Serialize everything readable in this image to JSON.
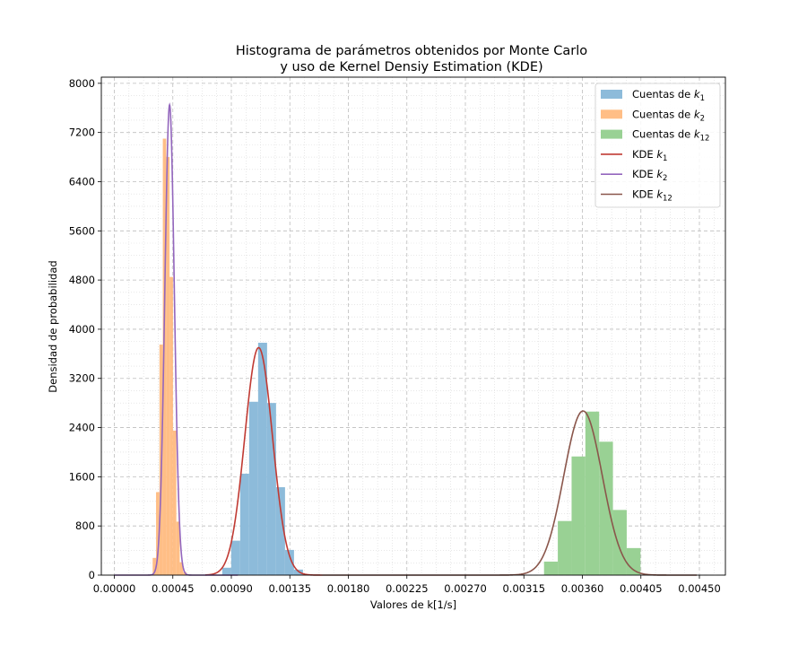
{
  "chart_data": {
    "type": "histogram-kde",
    "title_line1": "Histograma de parámetros obtenidos por Monte Carlo",
    "title_line2": "y uso de Kernel Densiy Estimation (KDE)",
    "xlabel": "Valores de k[1/s]",
    "ylabel": "Densidad de probabilidad",
    "xlim": [
      -0.0001,
      0.0047
    ],
    "ylim": [
      0,
      8100
    ],
    "xticks": [
      0.0,
      0.00045,
      0.0009,
      0.00135,
      0.0018,
      0.00225,
      0.0027,
      0.00315,
      0.0036,
      0.00405,
      0.0045
    ],
    "xtick_labels": [
      "0.00000",
      "0.00045",
      "0.00090",
      "0.00135",
      "0.00180",
      "0.00225",
      "0.00270",
      "0.00315",
      "0.00360",
      "0.00405",
      "0.00450"
    ],
    "yticks": [
      0,
      800,
      1600,
      2400,
      3200,
      4000,
      4800,
      5600,
      6400,
      7200,
      8000
    ],
    "ytick_labels": [
      "0",
      "800",
      "1600",
      "2400",
      "3200",
      "4000",
      "4800",
      "5600",
      "6400",
      "7200",
      "8000"
    ],
    "grid": "major dashed + minor dotted",
    "legend_position": "top-right",
    "histograms": [
      {
        "name": "Cuentas de k1",
        "color": "#8dbbda",
        "bin_edges": [
          0.00083,
          0.000899,
          0.000968,
          0.001037,
          0.001106,
          0.001175,
          0.001244,
          0.001313,
          0.001382,
          0.001451
        ],
        "values": [
          120,
          560,
          1650,
          2820,
          3780,
          2800,
          1430,
          410,
          90
        ]
      },
      {
        "name": "Cuentas de k2",
        "color": "#ffbe86",
        "bin_edges": [
          0.000295,
          0.000321,
          0.000347,
          0.000373,
          0.000399,
          0.000425,
          0.000451,
          0.000477,
          0.000503,
          0.000529,
          0.000555,
          0.000581
        ],
        "values": [
          280,
          1350,
          3750,
          7100,
          6800,
          4850,
          2350,
          870,
          210,
          50,
          10
        ]
      },
      {
        "name": "Cuentas de k12",
        "color": "#99d194",
        "bin_edges": [
          0.003305,
          0.003411,
          0.003517,
          0.003623,
          0.003729,
          0.003835,
          0.003941,
          0.004047
        ],
        "values": [
          220,
          880,
          1930,
          2660,
          2170,
          1060,
          440
        ]
      }
    ],
    "kde": [
      {
        "name": "KDE k1",
        "color": "#c03a33",
        "mu": 0.00111,
        "sigma": 0.000107,
        "peak": 3700,
        "xrange": [
          0.0007,
          0.0016
        ]
      },
      {
        "name": "KDE k2",
        "color": "#9366bd",
        "mu": 0.000425,
        "sigma": 3.65e-05,
        "peak": 7650,
        "xrange": [
          0.0,
          0.00095
        ]
      },
      {
        "name": "KDE k12",
        "color": "#8a564b",
        "mu": 0.003605,
        "sigma": 0.000148,
        "peak": 2670,
        "xrange": [
          0.0016,
          0.00448
        ]
      }
    ],
    "legend": [
      {
        "kind": "patch",
        "prefix": "Cuentas de ",
        "sym": "k",
        "sub": "1",
        "color": "#8dbbda"
      },
      {
        "kind": "patch",
        "prefix": "Cuentas de ",
        "sym": "k",
        "sub": "2",
        "color": "#ffbe86"
      },
      {
        "kind": "patch",
        "prefix": "Cuentas de ",
        "sym": "k",
        "sub": "12",
        "color": "#99d194"
      },
      {
        "kind": "line",
        "prefix": "KDE ",
        "sym": "k",
        "sub": "1",
        "color": "#c03a33"
      },
      {
        "kind": "line",
        "prefix": "KDE ",
        "sym": "k",
        "sub": "2",
        "color": "#9366bd"
      },
      {
        "kind": "line",
        "prefix": "KDE ",
        "sym": "k",
        "sub": "12",
        "color": "#8a564b"
      }
    ]
  }
}
